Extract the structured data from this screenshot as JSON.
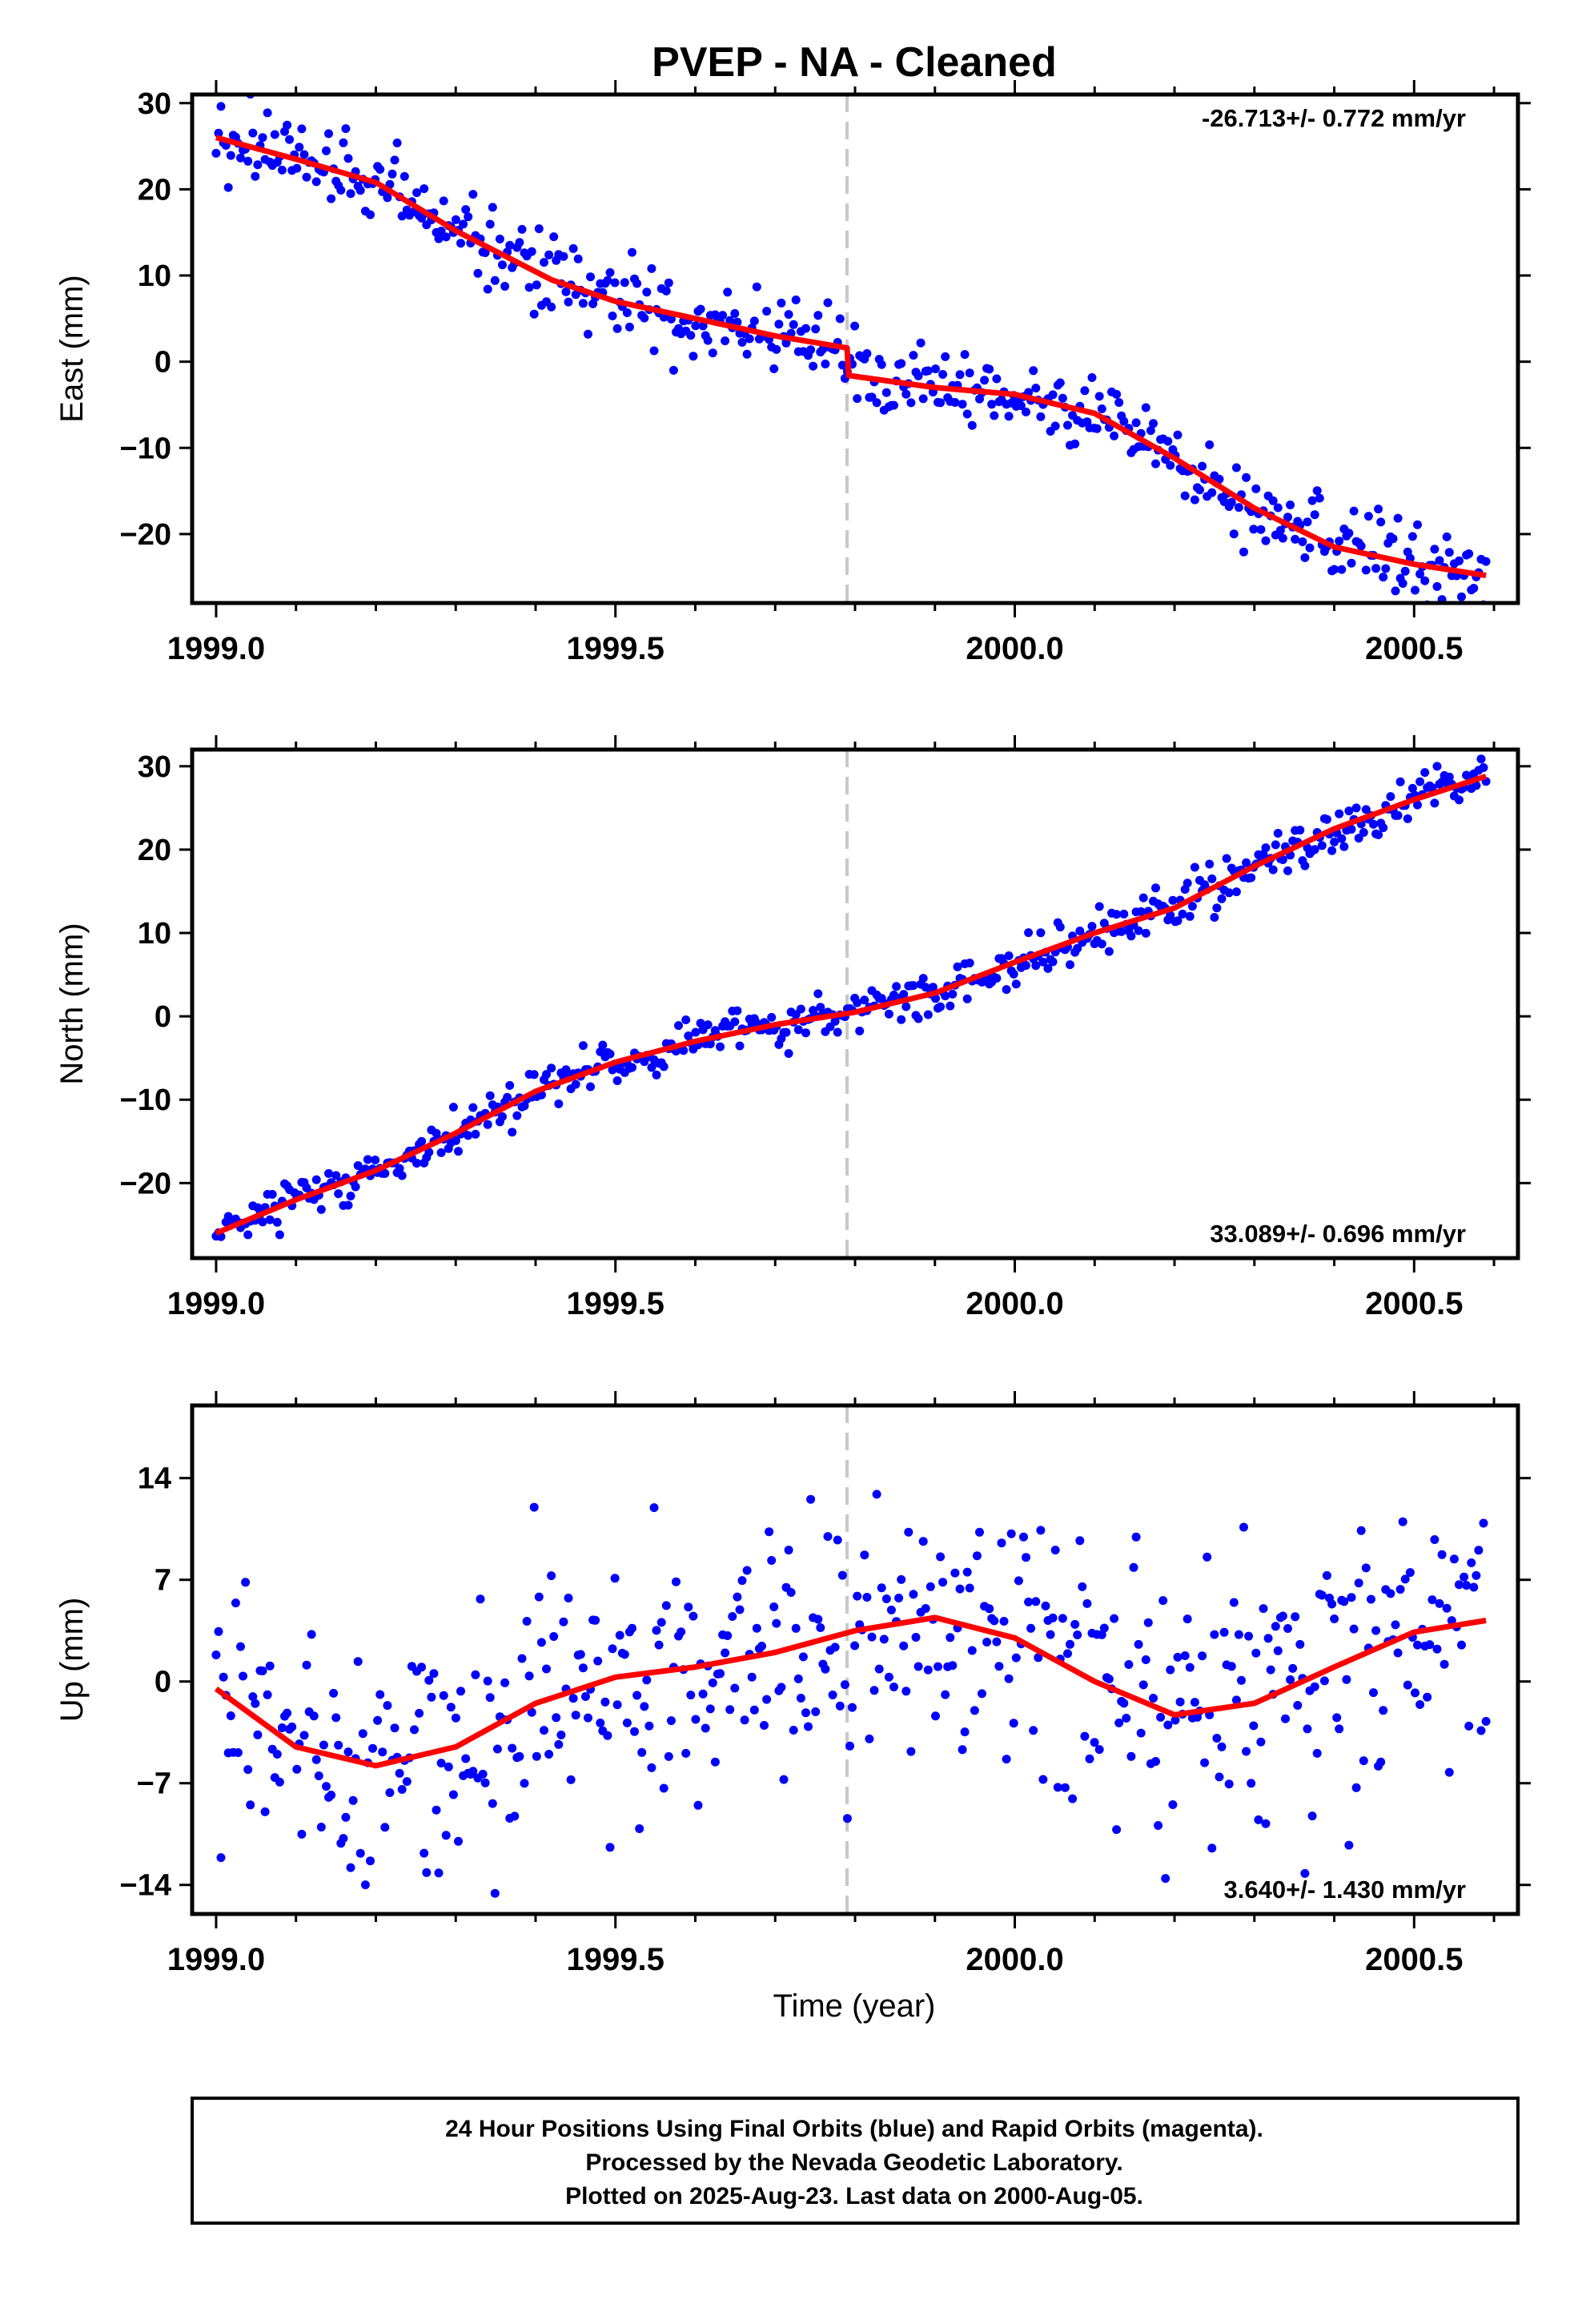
{
  "title": "PVEP  - NA - Cleaned",
  "xlabel": "Time (year)",
  "x_ticks": [
    "1999.0",
    "1999.5",
    "2000.0",
    "2000.5"
  ],
  "footer": {
    "line1": "24 Hour Positions Using Final Orbits (blue) and Rapid Orbits (magenta).",
    "line2": "Processed by the Nevada Geodetic Laboratory.",
    "line3": "Plotted on 2025-Aug-23. Last data on 2000-Aug-05."
  },
  "colors": {
    "points": "#0000ff",
    "fit": "#ff0000",
    "event_line": "#c8c8c8",
    "frame": "#000000"
  },
  "chart_data": [
    {
      "type": "scatter",
      "panel": "East",
      "ylabel": "East (mm)",
      "rate_label": "-26.713+/- 0.772 mm/yr",
      "rate_position": "top-right",
      "xlim": [
        1998.97,
        2000.63
      ],
      "ylim": [
        -28,
        31
      ],
      "yticks": [
        30,
        20,
        10,
        0,
        -10,
        -20
      ],
      "ytick_labels": [
        "30",
        "20",
        "10",
        "0",
        "−10",
        "−20"
      ],
      "event_x": 1999.79,
      "series": [
        {
          "role": "daily positions",
          "style": "points",
          "approx_point_count": 520,
          "trend_knots": [
            [
              1999.0,
              26.0
            ],
            [
              1999.1,
              23.5
            ],
            [
              1999.2,
              21.0
            ],
            [
              1999.3,
              15.0
            ],
            [
              1999.42,
              9.5
            ],
            [
              1999.5,
              7.0
            ],
            [
              1999.6,
              5.0
            ],
            [
              1999.7,
              3.0
            ],
            [
              1999.79,
              1.5
            ],
            [
              1999.8,
              -1.5
            ],
            [
              1999.9,
              -3.0
            ],
            [
              2000.0,
              -3.8
            ],
            [
              2000.1,
              -6.0
            ],
            [
              2000.2,
              -11.0
            ],
            [
              2000.3,
              -17.0
            ],
            [
              2000.4,
              -21.5
            ],
            [
              2000.5,
              -23.5
            ],
            [
              2000.59,
              -24.5
            ]
          ],
          "scatter_mm": 2.2
        },
        {
          "role": "model fit",
          "style": "line",
          "x": [
            1999.0,
            1999.1,
            1999.2,
            1999.3,
            1999.42,
            1999.5,
            1999.6,
            1999.7,
            1999.79,
            1999.792,
            1999.9,
            2000.0,
            2000.1,
            2000.2,
            2000.3,
            2000.4,
            2000.5,
            2000.59
          ],
          "y": [
            26.0,
            23.5,
            20.8,
            15.2,
            9.5,
            7.0,
            5.0,
            3.0,
            1.6,
            -1.6,
            -3.0,
            -3.8,
            -6.0,
            -11.2,
            -17.0,
            -21.5,
            -23.5,
            -24.8
          ]
        }
      ]
    },
    {
      "type": "scatter",
      "panel": "North",
      "ylabel": "North (mm)",
      "rate_label": "33.089+/- 0.696 mm/yr",
      "rate_position": "bottom-right",
      "xlim": [
        1998.97,
        2000.63
      ],
      "ylim": [
        -29,
        32
      ],
      "yticks": [
        30,
        20,
        10,
        0,
        -10,
        -20
      ],
      "ytick_labels": [
        "30",
        "20",
        "10",
        "0",
        "−10",
        "−20"
      ],
      "event_x": 1999.79,
      "series": [
        {
          "role": "daily positions",
          "style": "points",
          "approx_point_count": 520,
          "trend_knots": [
            [
              1999.0,
              -26.0
            ],
            [
              1999.1,
              -22.0
            ],
            [
              1999.2,
              -18.5
            ],
            [
              1999.3,
              -14.0
            ],
            [
              1999.4,
              -9.0
            ],
            [
              1999.5,
              -5.5
            ],
            [
              1999.6,
              -3.0
            ],
            [
              1999.7,
              -1.0
            ],
            [
              1999.8,
              0.5
            ],
            [
              1999.9,
              2.5
            ],
            [
              2000.0,
              6.5
            ],
            [
              2000.1,
              10.0
            ],
            [
              2000.2,
              13.0
            ],
            [
              2000.3,
              18.0
            ],
            [
              2000.4,
              22.0
            ],
            [
              2000.5,
              26.0
            ],
            [
              2000.59,
              28.8
            ]
          ],
          "scatter_mm": 1.4
        },
        {
          "role": "model fit",
          "style": "line",
          "x": [
            1999.0,
            1999.1,
            1999.2,
            1999.3,
            1999.4,
            1999.5,
            1999.6,
            1999.7,
            1999.8,
            1999.9,
            2000.0,
            2000.1,
            2000.2,
            2000.3,
            2000.4,
            2000.5,
            2000.59
          ],
          "y": [
            -26.0,
            -22.0,
            -18.5,
            -14.0,
            -9.0,
            -5.5,
            -3.0,
            -1.0,
            0.5,
            2.8,
            6.5,
            10.0,
            13.0,
            18.0,
            22.5,
            26.0,
            28.8
          ]
        }
      ]
    },
    {
      "type": "scatter",
      "panel": "Up",
      "ylabel": "Up (mm)",
      "rate_label": "3.640+/- 1.430 mm/yr",
      "rate_position": "bottom-right",
      "xlim": [
        1998.97,
        2000.63
      ],
      "ylim": [
        -16,
        19
      ],
      "yticks": [
        14,
        7,
        0,
        -7,
        -14
      ],
      "ytick_labels": [
        "14",
        "7",
        "0",
        "−7",
        "−14"
      ],
      "event_x": 1999.79,
      "series": [
        {
          "role": "daily positions",
          "style": "points",
          "approx_point_count": 520,
          "trend_knots": [
            [
              1999.0,
              -0.5
            ],
            [
              1999.1,
              -4.5
            ],
            [
              1999.2,
              -5.8
            ],
            [
              1999.3,
              -4.5
            ],
            [
              1999.4,
              -1.5
            ],
            [
              1999.5,
              0.3
            ],
            [
              1999.6,
              1.0
            ],
            [
              1999.7,
              2.0
            ],
            [
              1999.8,
              3.5
            ],
            [
              1999.9,
              4.4
            ],
            [
              2000.0,
              3.0
            ],
            [
              2000.1,
              0.0
            ],
            [
              2000.2,
              -2.3
            ],
            [
              2000.3,
              -1.5
            ],
            [
              2000.4,
              1.0
            ],
            [
              2000.5,
              3.4
            ],
            [
              2000.59,
              4.2
            ]
          ],
          "scatter_mm": 4.5
        },
        {
          "role": "model fit",
          "style": "line",
          "x": [
            1999.0,
            1999.1,
            1999.2,
            1999.3,
            1999.4,
            1999.5,
            1999.6,
            1999.7,
            1999.8,
            1999.9,
            2000.0,
            2000.1,
            2000.2,
            2000.3,
            2000.4,
            2000.5,
            2000.59
          ],
          "y": [
            -0.5,
            -4.5,
            -5.8,
            -4.5,
            -1.5,
            0.3,
            1.0,
            2.0,
            3.5,
            4.4,
            3.0,
            0.0,
            -2.3,
            -1.5,
            1.0,
            3.4,
            4.2
          ]
        }
      ]
    }
  ]
}
